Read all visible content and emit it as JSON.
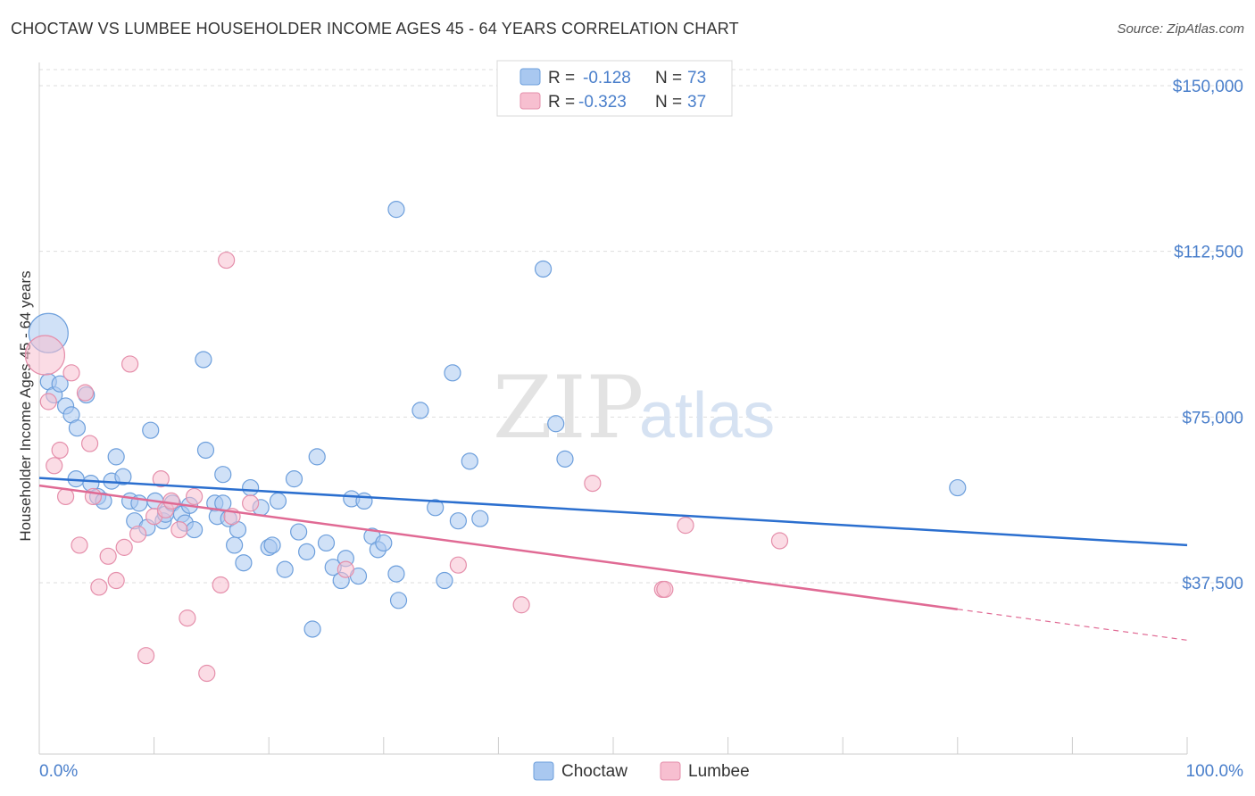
{
  "title": "CHOCTAW VS LUMBEE HOUSEHOLDER INCOME AGES 45 - 64 YEARS CORRELATION CHART",
  "source": "Source: ZipAtlas.com",
  "watermark": {
    "zip": "ZIP",
    "atlas": "atlas"
  },
  "legend": {
    "rows": [
      {
        "r_label": "R =",
        "r_value": "-0.128",
        "n_label": "N =",
        "n_value": "73",
        "color": "#a9c8f0",
        "stroke": "#6d9fdc"
      },
      {
        "r_label": "R =",
        "r_value": "-0.323",
        "n_label": "N =",
        "n_value": "37",
        "color": "#f7bfd0",
        "stroke": "#e58fab"
      }
    ]
  },
  "bottom_legend": [
    {
      "label": "Choctaw",
      "color": "#a9c8f0",
      "stroke": "#6d9fdc"
    },
    {
      "label": "Lumbee",
      "color": "#f7bfd0",
      "stroke": "#e58fab"
    }
  ],
  "chart_data": {
    "type": "scatter",
    "title": "CHOCTAW VS LUMBEE HOUSEHOLDER INCOME AGES 45 - 64 YEARS CORRELATION CHART",
    "xlabel": "",
    "ylabel": "Householder Income Ages 45 - 64 years",
    "xlim": [
      0,
      100
    ],
    "ylim": [
      0,
      155000
    ],
    "x_tick_labels": [
      "0.0%",
      "100.0%"
    ],
    "y_ticks": [
      37500,
      75000,
      112500,
      150000
    ],
    "y_tick_labels": [
      "$37,500",
      "$75,000",
      "$112,500",
      "$150,000"
    ],
    "grid": true,
    "legend_position": "top-center",
    "series": [
      {
        "name": "Choctaw",
        "color": "#6d9fdc",
        "fill": "#a9c8f0",
        "trend": {
          "x0": 0,
          "y0": 61200,
          "x1": 100,
          "y1": 46000,
          "color": "#2b6fcf"
        },
        "points": [
          {
            "x": 0.8,
            "y": 94000,
            "big": true
          },
          {
            "x": 0.8,
            "y": 83000
          },
          {
            "x": 1.3,
            "y": 80000
          },
          {
            "x": 1.8,
            "y": 82500
          },
          {
            "x": 2.3,
            "y": 77500
          },
          {
            "x": 2.8,
            "y": 75500
          },
          {
            "x": 3.3,
            "y": 72500
          },
          {
            "x": 4.1,
            "y": 80000
          },
          {
            "x": 3.2,
            "y": 61000
          },
          {
            "x": 4.5,
            "y": 60000
          },
          {
            "x": 5.1,
            "y": 57000
          },
          {
            "x": 5.6,
            "y": 56000
          },
          {
            "x": 6.3,
            "y": 60500
          },
          {
            "x": 6.7,
            "y": 66000
          },
          {
            "x": 7.3,
            "y": 61500
          },
          {
            "x": 7.9,
            "y": 56000
          },
          {
            "x": 8.3,
            "y": 51500
          },
          {
            "x": 8.7,
            "y": 55500
          },
          {
            "x": 9.4,
            "y": 50000
          },
          {
            "x": 9.7,
            "y": 72000
          },
          {
            "x": 10.1,
            "y": 56000
          },
          {
            "x": 10.8,
            "y": 51500
          },
          {
            "x": 11.0,
            "y": 53000
          },
          {
            "x": 11.6,
            "y": 55500
          },
          {
            "x": 12.4,
            "y": 53000
          },
          {
            "x": 12.7,
            "y": 51000
          },
          {
            "x": 13.1,
            "y": 55000
          },
          {
            "x": 13.5,
            "y": 49500
          },
          {
            "x": 14.3,
            "y": 88000
          },
          {
            "x": 14.5,
            "y": 67500
          },
          {
            "x": 15.3,
            "y": 55500
          },
          {
            "x": 15.5,
            "y": 52500
          },
          {
            "x": 16.0,
            "y": 62000
          },
          {
            "x": 16.5,
            "y": 52000
          },
          {
            "x": 17.0,
            "y": 46000
          },
          {
            "x": 17.3,
            "y": 49500
          },
          {
            "x": 17.8,
            "y": 42000
          },
          {
            "x": 18.4,
            "y": 59000
          },
          {
            "x": 19.3,
            "y": 54500
          },
          {
            "x": 20.0,
            "y": 45500
          },
          {
            "x": 20.3,
            "y": 46000
          },
          {
            "x": 20.8,
            "y": 56000
          },
          {
            "x": 21.4,
            "y": 40500
          },
          {
            "x": 22.2,
            "y": 61000
          },
          {
            "x": 22.6,
            "y": 49000
          },
          {
            "x": 23.3,
            "y": 44500
          },
          {
            "x": 23.8,
            "y": 27000
          },
          {
            "x": 24.2,
            "y": 66000
          },
          {
            "x": 25.0,
            "y": 46500
          },
          {
            "x": 25.6,
            "y": 41000
          },
          {
            "x": 26.3,
            "y": 38000
          },
          {
            "x": 26.7,
            "y": 43000
          },
          {
            "x": 27.2,
            "y": 56500
          },
          {
            "x": 27.8,
            "y": 39000
          },
          {
            "x": 28.3,
            "y": 56000
          },
          {
            "x": 29.0,
            "y": 48000
          },
          {
            "x": 29.5,
            "y": 45000
          },
          {
            "x": 30.0,
            "y": 46500
          },
          {
            "x": 31.1,
            "y": 39500
          },
          {
            "x": 31.3,
            "y": 33500
          },
          {
            "x": 31.1,
            "y": 122000
          },
          {
            "x": 33.2,
            "y": 76500
          },
          {
            "x": 34.5,
            "y": 54500
          },
          {
            "x": 35.3,
            "y": 38000
          },
          {
            "x": 36.0,
            "y": 85000
          },
          {
            "x": 36.5,
            "y": 51500
          },
          {
            "x": 37.5,
            "y": 65000
          },
          {
            "x": 38.4,
            "y": 52000
          },
          {
            "x": 43.9,
            "y": 108500
          },
          {
            "x": 45.0,
            "y": 73500
          },
          {
            "x": 45.8,
            "y": 65500
          },
          {
            "x": 80.0,
            "y": 59000
          },
          {
            "x": 16.0,
            "y": 55500
          }
        ]
      },
      {
        "name": "Lumbee",
        "color": "#e58fab",
        "fill": "#f7bfd0",
        "trend": {
          "x0": 0,
          "y0": 59500,
          "x1": 80,
          "y1": 31500,
          "color": "#e06a94"
        },
        "trend_dashed": {
          "x0": 80,
          "y0": 31500,
          "x1": 100,
          "y1": 24500
        },
        "points": [
          {
            "x": 0.5,
            "y": 89000,
            "big": true
          },
          {
            "x": 0.8,
            "y": 78500
          },
          {
            "x": 1.3,
            "y": 64000
          },
          {
            "x": 1.8,
            "y": 67500
          },
          {
            "x": 2.3,
            "y": 57000
          },
          {
            "x": 2.8,
            "y": 85000
          },
          {
            "x": 3.5,
            "y": 46000
          },
          {
            "x": 4.0,
            "y": 80500
          },
          {
            "x": 4.4,
            "y": 69000
          },
          {
            "x": 4.7,
            "y": 57000
          },
          {
            "x": 5.2,
            "y": 36500
          },
          {
            "x": 6.0,
            "y": 43500
          },
          {
            "x": 6.7,
            "y": 38000
          },
          {
            "x": 7.4,
            "y": 45500
          },
          {
            "x": 7.9,
            "y": 87000
          },
          {
            "x": 8.6,
            "y": 48500
          },
          {
            "x": 9.3,
            "y": 21000
          },
          {
            "x": 10.0,
            "y": 52500
          },
          {
            "x": 10.6,
            "y": 61000
          },
          {
            "x": 11.0,
            "y": 54000
          },
          {
            "x": 11.5,
            "y": 56000
          },
          {
            "x": 12.2,
            "y": 49500
          },
          {
            "x": 12.9,
            "y": 29500
          },
          {
            "x": 13.5,
            "y": 57000
          },
          {
            "x": 14.6,
            "y": 17000
          },
          {
            "x": 15.8,
            "y": 37000
          },
          {
            "x": 16.3,
            "y": 110500
          },
          {
            "x": 16.8,
            "y": 52500
          },
          {
            "x": 18.4,
            "y": 55500
          },
          {
            "x": 26.7,
            "y": 40500
          },
          {
            "x": 36.5,
            "y": 41500
          },
          {
            "x": 42.0,
            "y": 32500
          },
          {
            "x": 48.2,
            "y": 60000
          },
          {
            "x": 54.3,
            "y": 36000
          },
          {
            "x": 54.5,
            "y": 36000
          },
          {
            "x": 56.3,
            "y": 50500
          },
          {
            "x": 64.5,
            "y": 47000
          }
        ]
      }
    ]
  }
}
